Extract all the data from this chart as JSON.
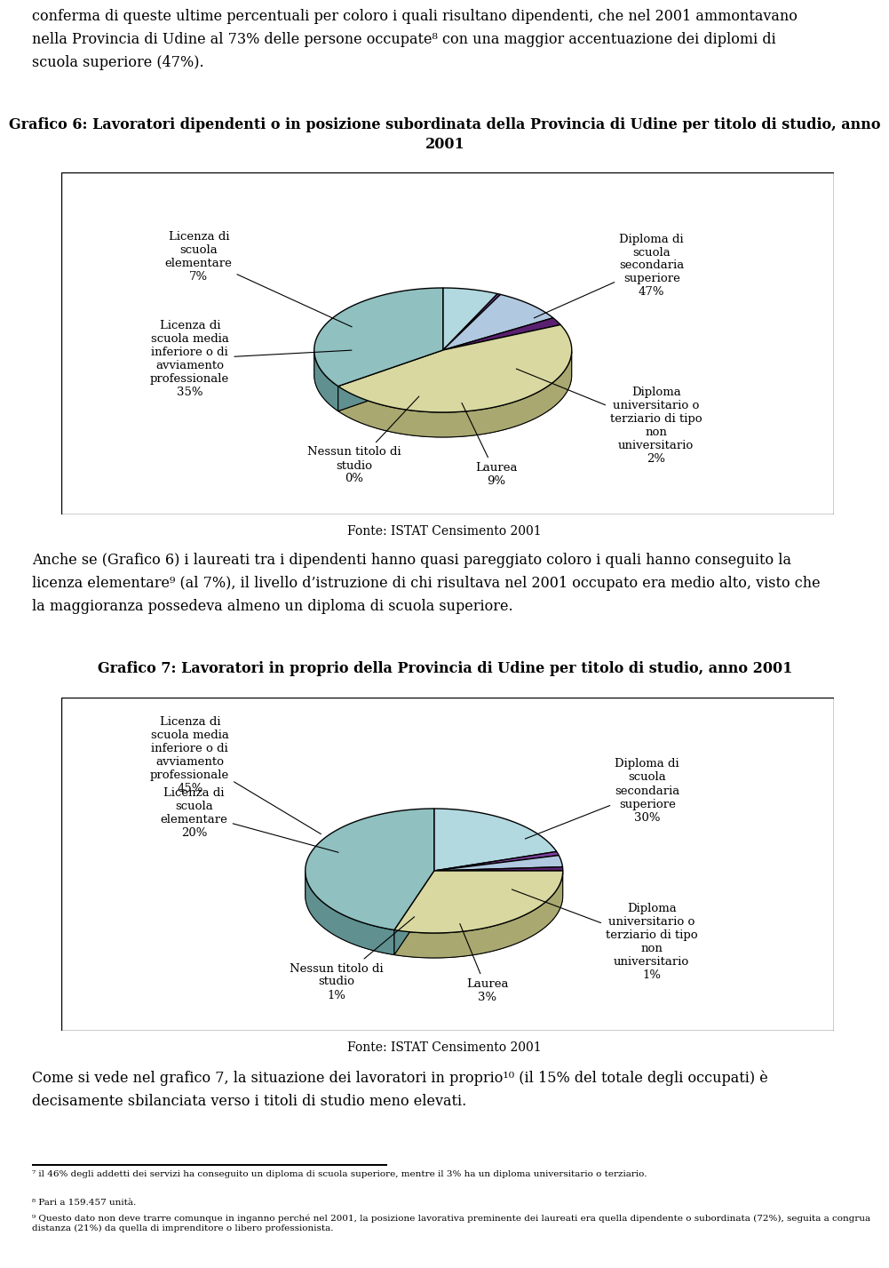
{
  "chart1_title_line1": "Grafico 6: Lavoratori dipendenti o in posizione subordinata della Provincia di Udine per titolo di studio, anno",
  "chart1_title_line2": "2001",
  "chart1_source": "Fonte: ISTAT Censimento 2001",
  "chart1_values": [
    7,
    0.4,
    9,
    2,
    47,
    35
  ],
  "chart1_colors_top": [
    "#b2d8e0",
    "#8040a0",
    "#b0c8e0",
    "#5a2070",
    "#d8d8a0",
    "#90c0c0"
  ],
  "chart1_colors_side": [
    "#7aa8b0",
    "#502870",
    "#7898b0",
    "#380e48",
    "#a8a870",
    "#609090"
  ],
  "chart1_label_texts": [
    "Licenza di\nscuola\nelementare\n7%",
    "Nessun titolo di\nstudio\n0%",
    "Laurea\n9%",
    "Diploma\nuniversitario o\nterziario di tipo\nnon\nuniversitario\n2%",
    "Diploma di\nscuola\nsecondaria\nsuperiore\n47%",
    "Licenza di\nscuola media\ninferiore o di\navviamento\nprofessionale\n35%"
  ],
  "chart2_title": "Grafico 7: Lavoratori in proprio della Provincia di Udine per titolo di studio, anno 2001",
  "chart2_source": "Fonte: ISTAT Censimento 2001",
  "chart2_values": [
    20,
    1,
    3,
    1,
    30,
    45
  ],
  "chart2_colors_top": [
    "#b2d8e0",
    "#8040a0",
    "#b0c8e0",
    "#5a2070",
    "#d8d8a0",
    "#90c0c0"
  ],
  "chart2_colors_side": [
    "#7aa8b0",
    "#502870",
    "#7898b0",
    "#380e48",
    "#a8a870",
    "#609090"
  ],
  "chart2_label_texts": [
    "Licenza di\nscuola\nelementare\n20%",
    "Nessun titolo di\nstudio\n1%",
    "Laurea\n3%",
    "Diploma\nuniversitario o\nterziario di tipo\nnon\nuniversitario\n1%",
    "Diploma di\nscuola\nsecondaria\nsuperiore\n30%",
    "Licenza di\nscuola media\ninferiore o di\navviamento\nprofessionale\n45%"
  ],
  "top_text": "conferma di queste ultime percentuali per coloro i quali risultano dipendenti, che nel 2001 ammontavano\nnella Provincia di Udine al 73% delle persone occupate⁸ con una maggior accentuazione dei diplomi di\nscuola superiore (47%).",
  "mid_text": "Anche se (Grafico 6) i laureati tra i dipendenti hanno quasi pareggiato coloro i quali hanno conseguito la\nlicenza elementare⁹ (al 7%), il livello d’istruzione di chi risultava nel 2001 occupato era medio alto, visto che\nla maggioranza possedeva almeno un diploma di scuola superiore.",
  "bot_text": "Come si vede nel grafico 7, la situazione dei lavoratori in proprio¹⁰ (il 15% del totale degli occupati) è\ndecisamente sbilanciata verso i titoli di studio meno elevati.",
  "fn1": "⁷ il 46% degli addetti dei servizi ha conseguito un diploma di scuola superiore, mentre il 3% ha un diploma universitario o terziario.",
  "fn2": "⁸ Pari a 159.457 unità.",
  "fn3": "⁹ Questo dato non deve trarre comunque in inganno perché nel 2001, la posizione lavorativa preminente dei laureati era quella dipendente o subordinata (72%), seguita a congrua distanza (21%) da quella di imprenditore o libero professionista."
}
